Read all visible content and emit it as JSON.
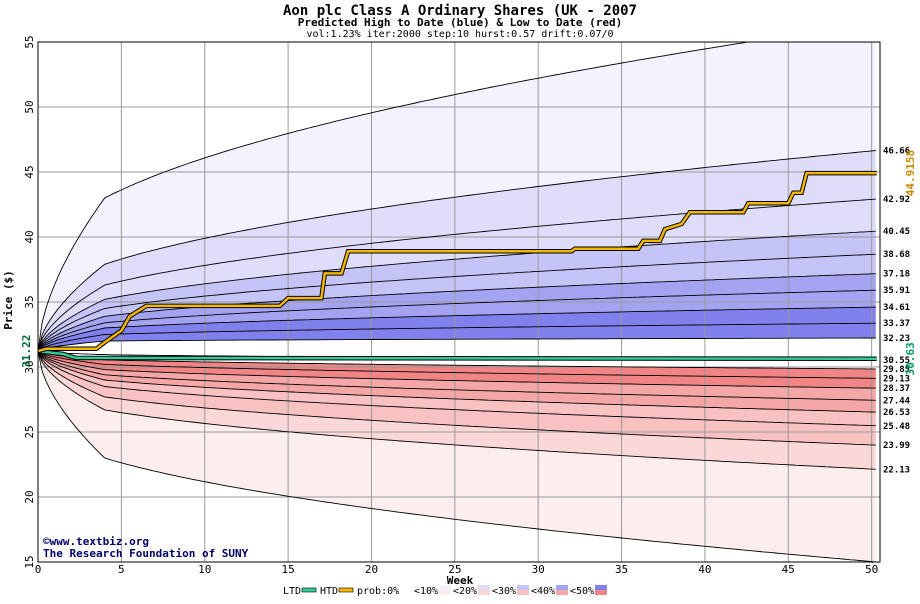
{
  "chart_data": {
    "type": "area",
    "title": "Aon plc Class A Ordinary Shares (UK - 2007",
    "subtitle": "Predicted High to Date (blue) &  Low to Date (red)",
    "params": "vol:1.23% iter:2000 step:10 hurst:0.57 drift:0.07/0",
    "xlabel": "Week",
    "ylabel": "Price ($)",
    "xlim": [
      0,
      50.5
    ],
    "ylim": [
      15,
      55
    ],
    "x_ticks": [
      0,
      5,
      10,
      15,
      20,
      25,
      30,
      35,
      40,
      45,
      50
    ],
    "y_ticks": [
      15,
      20,
      25,
      30,
      35,
      40,
      45,
      50,
      55
    ],
    "grid": true,
    "start_price": 31.22,
    "start_label": "31.22",
    "htd_end_label": "44.9158",
    "ltd_end_label": "30.63",
    "htd_end_value": 44.9158,
    "ltd_end_value": 30.63,
    "band_colors": {
      "lt10": "#f3f3ff",
      "lt20": "#dedefa",
      "lt30": "#c4c4f6",
      "lt40": "#a3a3f2",
      "lt50": "#8181ee",
      "red_lt10": "#fdeeee",
      "red_lt20": "#fbd8d8",
      "red_lt30": "#f8c2c2",
      "red_lt40": "#f5a6a6",
      "red_lt50": "#f18484",
      "htd": "#f5b800",
      "ltd": "#33cc99"
    },
    "high_quantiles": [
      {
        "label": "",
        "end": 56.5,
        "week4": 43.0
      },
      {
        "label": "46.66",
        "end": 46.66,
        "week4": 37.9
      },
      {
        "label": "42.92",
        "end": 42.92,
        "week4": 36.3
      },
      {
        "label": "40.45",
        "end": 40.45,
        "week4": 35.2
      },
      {
        "label": "38.68",
        "end": 38.68,
        "week4": 34.5
      },
      {
        "label": "37.18",
        "end": 37.18,
        "week4": 33.9
      },
      {
        "label": "35.91",
        "end": 35.91,
        "week4": 33.4
      },
      {
        "label": "34.61",
        "end": 34.61,
        "week4": 33.0
      },
      {
        "label": "33.37",
        "end": 33.37,
        "week4": 32.5
      },
      {
        "label": "32.23",
        "end": 32.23,
        "week4": 32.0
      },
      {
        "label": "30.55",
        "end": 30.55,
        "week4": 30.95
      }
    ],
    "low_quantiles": [
      {
        "label": "29.85",
        "end": 29.85,
        "week4": 30.55
      },
      {
        "label": "29.13",
        "end": 29.13,
        "week4": 30.2
      },
      {
        "label": "28.37",
        "end": 28.37,
        "week4": 29.8
      },
      {
        "label": "27.44",
        "end": 27.44,
        "week4": 29.4
      },
      {
        "label": "26.53",
        "end": 26.53,
        "week4": 29.0
      },
      {
        "label": "25.48",
        "end": 25.48,
        "week4": 28.5
      },
      {
        "label": "23.99",
        "end": 23.99,
        "week4": 27.7
      },
      {
        "label": "22.13",
        "end": 22.13,
        "week4": 26.7
      },
      {
        "label": "",
        "end": 15.0,
        "week4": 23.0
      }
    ],
    "series": [
      {
        "name": "HTD",
        "points": [
          [
            0,
            31.22
          ],
          [
            0.5,
            31.4
          ],
          [
            3.5,
            31.4
          ],
          [
            4.0,
            31.9
          ],
          [
            5.0,
            32.8
          ],
          [
            5.5,
            33.9
          ],
          [
            6.5,
            34.7
          ],
          [
            14.5,
            34.7
          ],
          [
            15.0,
            35.3
          ],
          [
            17.0,
            35.3
          ],
          [
            17.2,
            37.2
          ],
          [
            18.2,
            37.2
          ],
          [
            18.6,
            38.9
          ],
          [
            32.0,
            38.9
          ],
          [
            32.2,
            39.1
          ],
          [
            36.0,
            39.1
          ],
          [
            36.3,
            39.7
          ],
          [
            37.3,
            39.7
          ],
          [
            37.6,
            40.6
          ],
          [
            38.6,
            41.0
          ],
          [
            39.1,
            41.9
          ],
          [
            42.3,
            41.9
          ],
          [
            42.6,
            42.6
          ],
          [
            45.0,
            42.6
          ],
          [
            45.3,
            43.4
          ],
          [
            45.8,
            43.4
          ],
          [
            46.1,
            44.9158
          ],
          [
            50.3,
            44.9158
          ]
        ]
      },
      {
        "name": "LTD",
        "points": [
          [
            0,
            31.22
          ],
          [
            1.5,
            31.0
          ],
          [
            2.0,
            30.8
          ],
          [
            2.3,
            30.7
          ],
          [
            50.3,
            30.63
          ]
        ]
      }
    ],
    "legend": [
      {
        "label": "LTD",
        "kind": "line",
        "color": "#33cc99"
      },
      {
        "label": "HTD",
        "kind": "line",
        "color": "#f5b800"
      },
      {
        "label": "prob:0%",
        "kind": "swatch",
        "color": "#ffffff"
      },
      {
        "label": "<10%",
        "kind": "swatch",
        "color": "#f3f3ff"
      },
      {
        "label": "<20%",
        "kind": "swatch",
        "color": "#dedefa"
      },
      {
        "label": "<30%",
        "kind": "swatch",
        "color": "#c4c4f6"
      },
      {
        "label": "<40%",
        "kind": "swatch",
        "color": "#a3a3f2"
      },
      {
        "label": "<50%",
        "kind": "swatch",
        "color": "#8181ee"
      }
    ],
    "legend_red_swatches": [
      "#ffffff",
      "#fdeeee",
      "#fbd8d8",
      "#f8c2c2",
      "#f5a6a6",
      "#f18484"
    ],
    "credits": [
      "©www.textbiz.org",
      "The Research Foundation of SUNY"
    ]
  }
}
